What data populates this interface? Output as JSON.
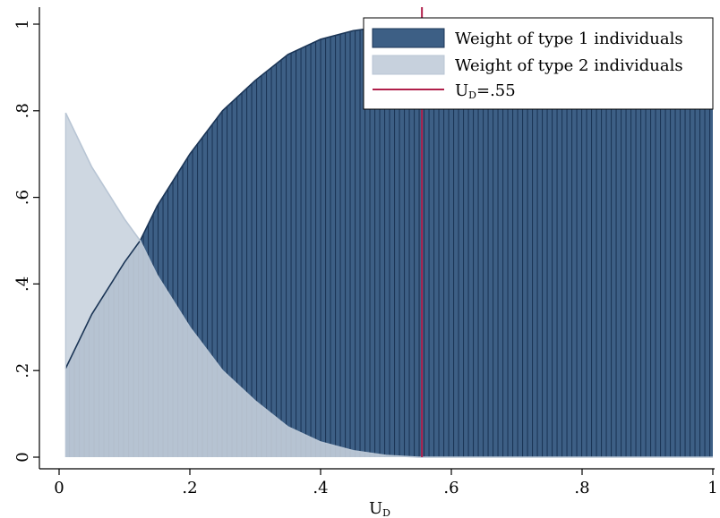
{
  "chart_data": {
    "type": "area",
    "xlabel": "U",
    "xlabel_sub": "D",
    "ylabel": "",
    "xlim": [
      0,
      1
    ],
    "ylim": [
      0,
      1
    ],
    "x_ticks": [
      {
        "value": 0,
        "label": "0"
      },
      {
        "value": 0.2,
        "label": ".2"
      },
      {
        "value": 0.4,
        "label": ".4"
      },
      {
        "value": 0.6,
        "label": ".6"
      },
      {
        "value": 0.8,
        "label": ".8"
      },
      {
        "value": 1,
        "label": "1"
      }
    ],
    "y_ticks": [
      {
        "value": 0,
        "label": "0"
      },
      {
        "value": 0.2,
        "label": ".2"
      },
      {
        "value": 0.4,
        "label": ".4"
      },
      {
        "value": 0.6,
        "label": ".6"
      },
      {
        "value": 0.8,
        "label": ".8"
      },
      {
        "value": 1,
        "label": "1"
      }
    ],
    "x": [
      0.01,
      0.05,
      0.1,
      0.124,
      0.15,
      0.2,
      0.25,
      0.3,
      0.35,
      0.4,
      0.45,
      0.5,
      0.55,
      0.6,
      0.65,
      0.7,
      0.75,
      0.8,
      0.85,
      0.9,
      0.95,
      1.0
    ],
    "series": [
      {
        "name": "Weight of type 1 individuals",
        "color": "#3d5f85",
        "edge_color": "#1b3556",
        "values": [
          0.205,
          0.33,
          0.45,
          0.5,
          0.58,
          0.7,
          0.8,
          0.87,
          0.93,
          0.965,
          0.985,
          0.995,
          1.0,
          1.0,
          1.0,
          1.0,
          1.0,
          1.0,
          1.0,
          1.0,
          1.0,
          1.0
        ]
      },
      {
        "name": "Weight of type 2 individuals",
        "color": "#c7d1dd",
        "edge_color": "#b8c5d4",
        "values": [
          0.795,
          0.67,
          0.55,
          0.5,
          0.42,
          0.3,
          0.2,
          0.13,
          0.07,
          0.035,
          0.015,
          0.004,
          0.0,
          0.0,
          0.0,
          0.0,
          0.0,
          0.0,
          0.0,
          0.0,
          0.0,
          0.0
        ]
      }
    ],
    "reference_line": {
      "x": 0.555,
      "label": "U",
      "label_sub": "D",
      "label_rest": "=.55",
      "color": "#b01f4a"
    },
    "legend_position": "top-right",
    "grid": false
  }
}
